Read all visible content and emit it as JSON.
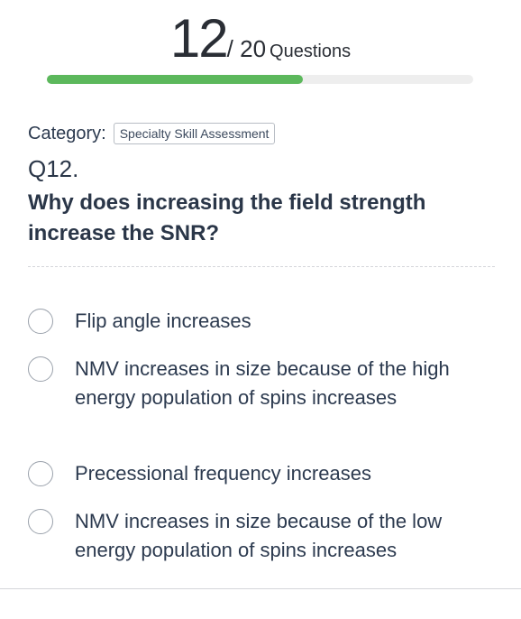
{
  "header": {
    "current_question": "12",
    "total": "/ 20",
    "questions_label": "Questions",
    "progress_fraction": 0.6,
    "progress_color": "#5cb85c"
  },
  "category": {
    "label": "Category:",
    "value": "Specialty Skill Assessment"
  },
  "question": {
    "number": "Q12.",
    "text": "Why does increasing the field strength increase the SNR?"
  },
  "options": [
    {
      "text": "Flip angle increases",
      "selected": false
    },
    {
      "text": "NMV increases in size because of the high energy population of spins increases",
      "selected": false
    },
    {
      "text": "Precessional frequency increases",
      "selected": false
    },
    {
      "text": "NMV increases in size because of the low energy population of spins increases",
      "selected": false
    }
  ]
}
